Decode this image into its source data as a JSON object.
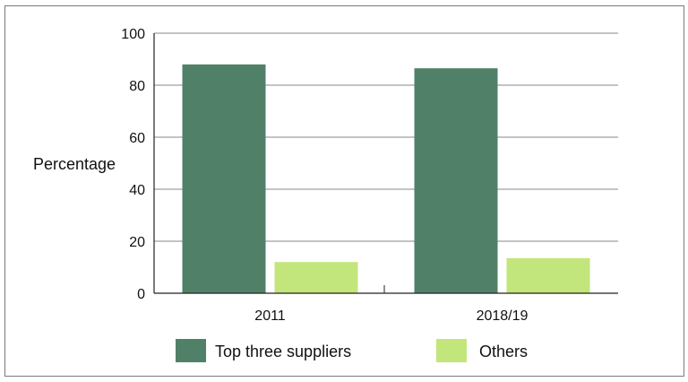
{
  "chart_data": {
    "type": "bar",
    "title": "",
    "xlabel": "",
    "ylabel": "Percentage",
    "categories": [
      "2011",
      "2018/19"
    ],
    "series": [
      {
        "name": "Top three suppliers",
        "values": [
          88,
          86.5
        ],
        "color": "#518069"
      },
      {
        "name": "Others",
        "values": [
          12,
          13.5
        ],
        "color": "#c2e67b"
      }
    ],
    "ylim": [
      0,
      100
    ],
    "yticks": [
      0,
      20,
      40,
      60,
      80,
      100
    ],
    "grid": true,
    "legend_position": "bottom"
  }
}
